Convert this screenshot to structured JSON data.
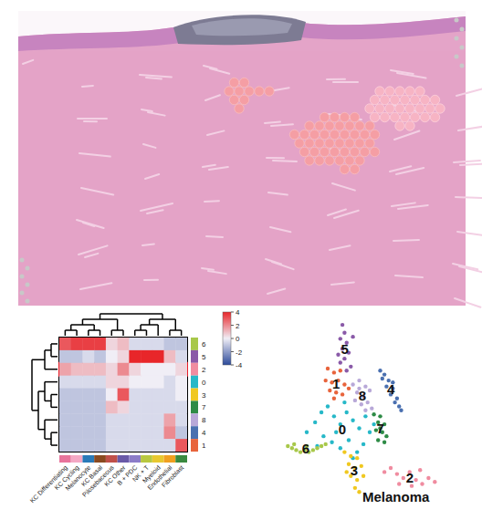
{
  "chart_data": [
    {
      "type": "heatmap",
      "rows": [
        "6",
        "5",
        "2",
        "0",
        "3",
        "7",
        "8",
        "4",
        "1"
      ],
      "columns": [
        "KC Differentiating",
        "KC Cycling",
        "Melanocyte",
        "KC Basal",
        "Pilosebaceous",
        "KC Other",
        "B + PDC",
        "NK + T",
        "Myeloid",
        "Endothelial",
        "Fibroblast"
      ],
      "values": [
        [
          3,
          3.5,
          3.5,
          3.5,
          0.5,
          1,
          -0.5,
          -0.5,
          -0.5,
          -1,
          -1
        ],
        [
          -1,
          -1,
          -0.5,
          -1,
          0,
          0.5,
          4,
          4,
          4,
          1,
          -0.5
        ],
        [
          1.5,
          1,
          1,
          1,
          0.5,
          2,
          0.5,
          0,
          0,
          0,
          0.5
        ],
        [
          -0.5,
          -0.5,
          -0.5,
          -0.5,
          0.5,
          0.5,
          0,
          0,
          0,
          -0.5,
          0
        ],
        [
          -1,
          -1,
          -1,
          -1,
          0,
          3,
          -0.5,
          -0.5,
          -0.5,
          -0.5,
          0
        ],
        [
          -1,
          -1,
          -1,
          -1,
          1,
          0.5,
          -0.5,
          -0.5,
          -0.5,
          -0.5,
          -0.5
        ],
        [
          -1,
          -1,
          -1,
          -1,
          -0.5,
          -0.5,
          -0.5,
          -0.5,
          -0.5,
          1.5,
          -0.5
        ],
        [
          -1,
          -1,
          -1,
          -1,
          -0.5,
          -0.5,
          -0.5,
          -0.5,
          -0.5,
          2,
          -1
        ],
        [
          -1,
          -1,
          -1,
          -1,
          -0.5,
          -0.5,
          -0.5,
          -0.5,
          -0.5,
          -0.5,
          3
        ]
      ],
      "row_colors": [
        "#a8c84a",
        "#8a5aa8",
        "#f08ca0",
        "#26b8c8",
        "#f0c820",
        "#2e8b46",
        "#b8a8d8",
        "#4a70b0",
        "#e8643c"
      ],
      "column_colors": [
        "#e8749c",
        "#f4a8c4",
        "#2a7ab8",
        "#8a4a20",
        "#c0504a",
        "#6a5aa8",
        "#8c7cc8",
        "#b8c840",
        "#e8c830",
        "#f0a020",
        "#3a8a40"
      ],
      "colorbar_range": [
        -4,
        4
      ],
      "colorbar_ticks": [
        4,
        2,
        0,
        -2,
        -4
      ]
    },
    {
      "type": "scatter",
      "title": "Melanoma",
      "xlim": [
        0,
        100
      ],
      "ylim": [
        0,
        100
      ],
      "tick_labels": false,
      "series": [
        {
          "name": "5",
          "color": "#8a5aa8",
          "x": [
            37,
            38,
            36,
            39,
            37,
            40,
            38,
            36,
            41,
            39,
            42,
            35
          ],
          "y": [
            94,
            90,
            87,
            85,
            82,
            80,
            77,
            75,
            73,
            71,
            88,
            79
          ]
        },
        {
          "name": "1",
          "color": "#e8643c",
          "x": [
            30,
            33,
            36,
            29,
            32,
            35,
            38,
            31,
            34,
            37,
            40,
            33
          ],
          "y": [
            72,
            70,
            71,
            66,
            65,
            66,
            64,
            61,
            60,
            59,
            62,
            57
          ]
        },
        {
          "name": "4",
          "color": "#4a70b0",
          "x": [
            55,
            57,
            59,
            58,
            61,
            60,
            63,
            62,
            64,
            56,
            65,
            61
          ],
          "y": [
            71,
            69,
            66,
            63,
            62,
            59,
            57,
            55,
            53,
            67,
            51,
            65
          ]
        },
        {
          "name": "8",
          "color": "#b8a8d8",
          "x": [
            42,
            45,
            48,
            44,
            47,
            50,
            43,
            46,
            49,
            51,
            45,
            48
          ],
          "y": [
            64,
            66,
            63,
            60,
            58,
            61,
            56,
            54,
            55,
            52,
            62,
            51
          ]
        },
        {
          "name": "0",
          "color": "#26b8c8",
          "x": [
            20,
            24,
            27,
            30,
            33,
            36,
            39,
            42,
            45,
            48,
            50,
            28,
            32,
            36,
            40,
            44,
            47,
            52,
            38,
            25,
            34,
            42
          ],
          "y": [
            40,
            45,
            50,
            53,
            48,
            44,
            50,
            46,
            42,
            48,
            40,
            38,
            35,
            32,
            36,
            30,
            34,
            44,
            55,
            33,
            40,
            27
          ]
        },
        {
          "name": "7",
          "color": "#2e8b46",
          "x": [
            52,
            55,
            54,
            57,
            53,
            56,
            58,
            54,
            57,
            55
          ],
          "y": [
            49,
            48,
            45,
            44,
            41,
            40,
            38,
            36,
            35,
            42
          ]
        },
        {
          "name": "6",
          "color": "#a8c84a",
          "x": [
            11,
            13,
            15,
            17,
            19,
            21,
            23,
            25,
            27,
            29,
            14,
            20
          ],
          "y": [
            33,
            32,
            31,
            30,
            31,
            30,
            31,
            32,
            33,
            34,
            34,
            33
          ]
        },
        {
          "name": "3",
          "color": "#f0c820",
          "x": [
            38,
            41,
            44,
            40,
            43,
            46,
            41,
            44,
            47,
            43,
            45,
            39
          ],
          "y": [
            30,
            28,
            27,
            24,
            22,
            23,
            18,
            16,
            18,
            12,
            10,
            20
          ]
        },
        {
          "name": "2",
          "color": "#f08ca0",
          "x": [
            57,
            60,
            63,
            66,
            69,
            72,
            75,
            78,
            81,
            70,
            64,
            74
          ],
          "y": [
            20,
            22,
            19,
            17,
            20,
            16,
            14,
            17,
            15,
            13,
            14,
            21
          ]
        }
      ]
    }
  ]
}
